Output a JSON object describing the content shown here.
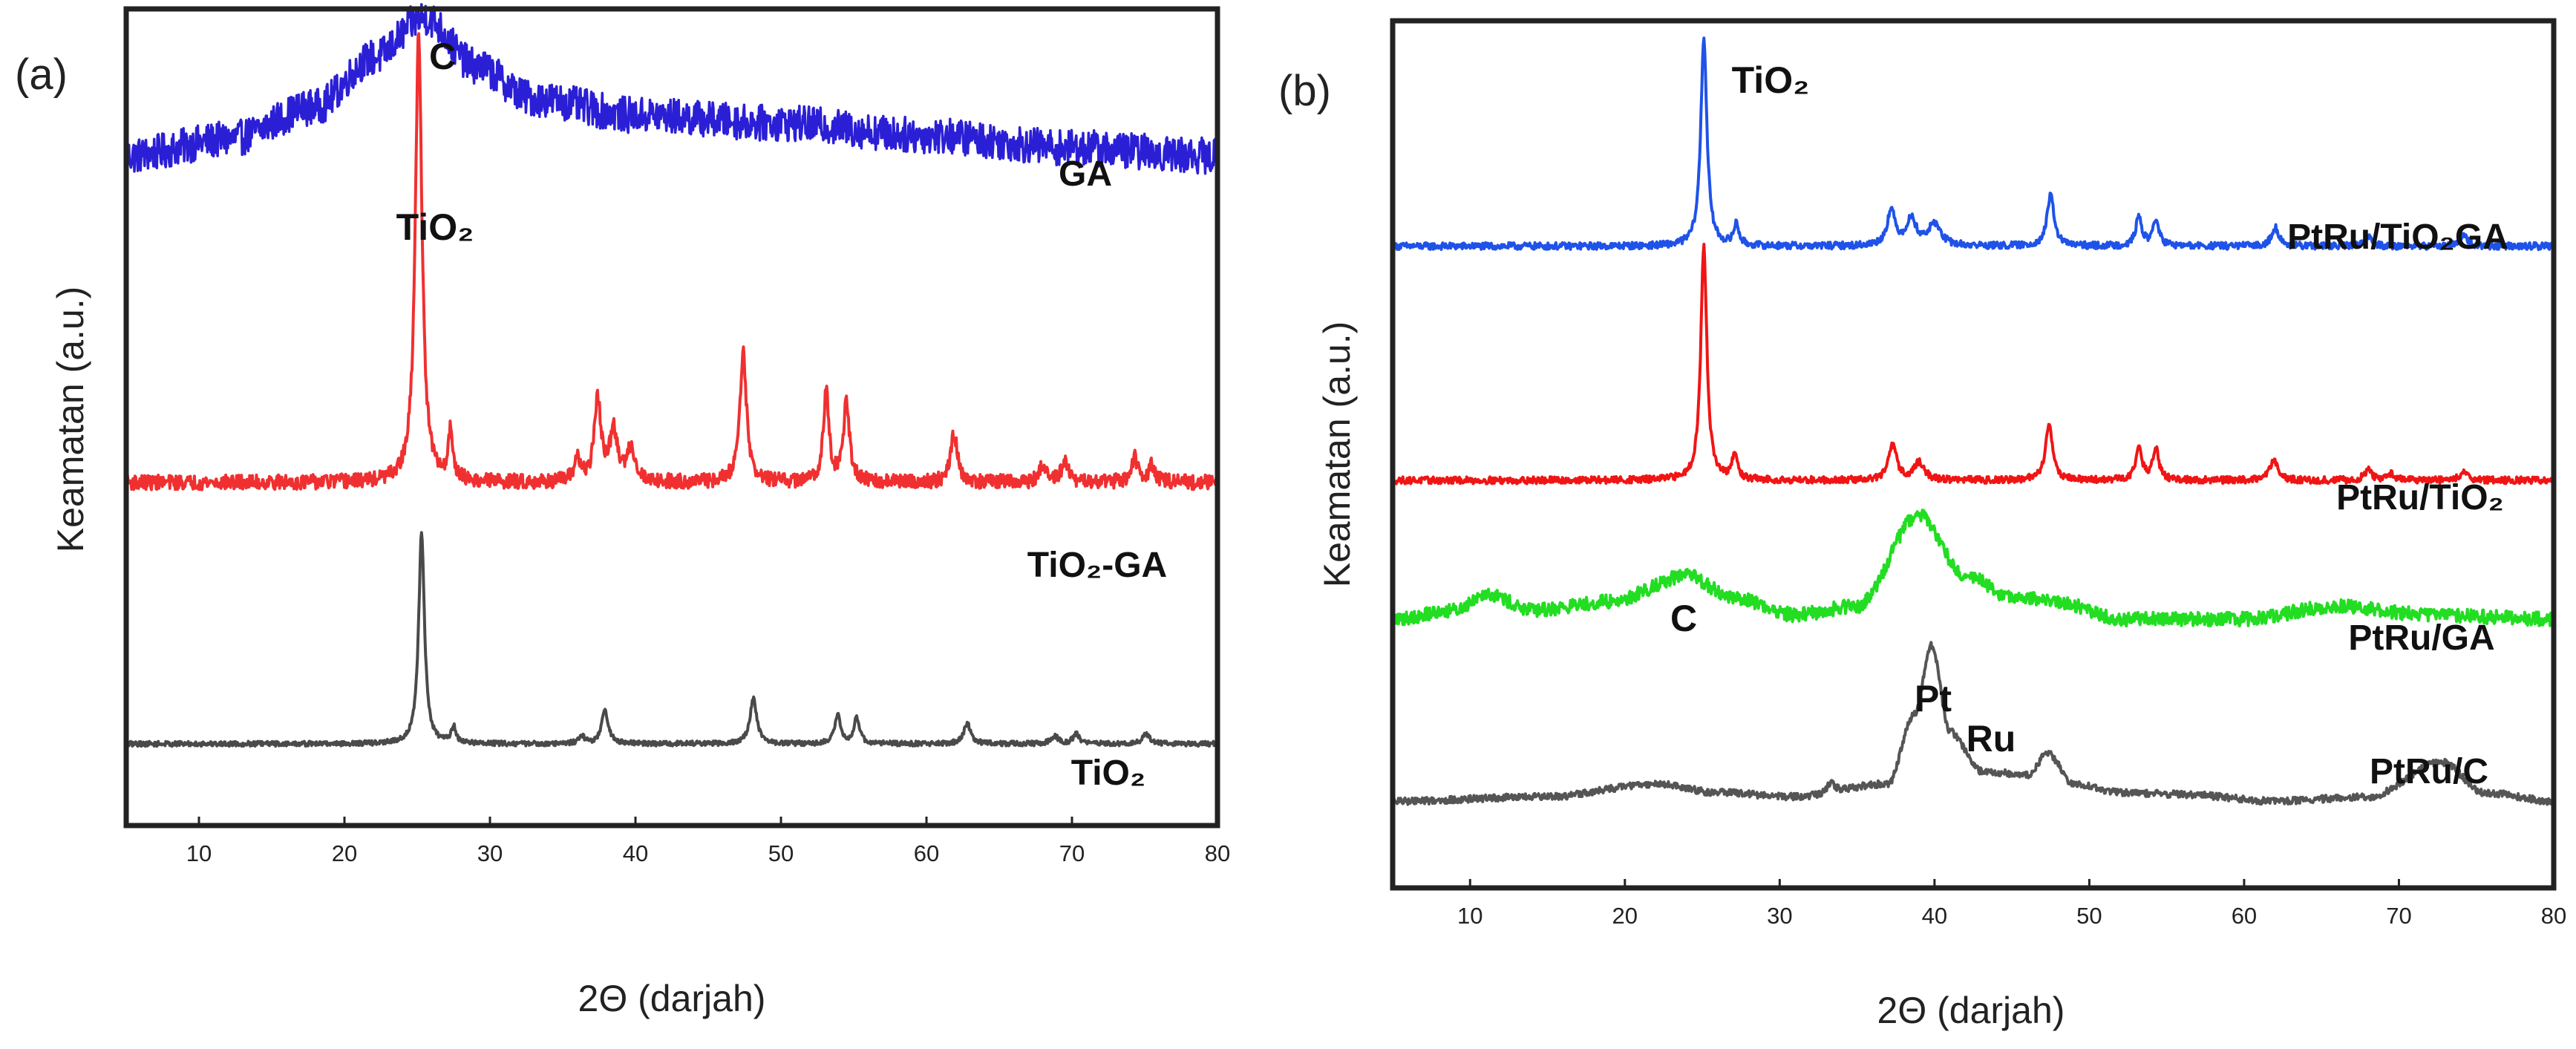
{
  "figure": {
    "panel_a_label": "(a)",
    "panel_b_label": "(b)"
  },
  "chart_data": [
    {
      "type": "line",
      "panel": "(a)",
      "title": "",
      "xlabel": "2Θ (darjah)",
      "ylabel": "Keamatan (a.u.)",
      "xlim": [
        5,
        80
      ],
      "xticks": [
        10,
        20,
        30,
        40,
        50,
        60,
        70,
        80
      ],
      "grid": false,
      "series": [
        {
          "name": "GA",
          "color": "#2b1fd6",
          "offset": 0.82,
          "base": [
            [
              5,
              0.0
            ],
            [
              12,
              0.02
            ],
            [
              18,
              0.06
            ],
            [
              22,
              0.12
            ],
            [
              25.5,
              0.17
            ],
            [
              29,
              0.11
            ],
            [
              33,
              0.07
            ],
            [
              40,
              0.05
            ],
            [
              50,
              0.04
            ],
            [
              60,
              0.025
            ],
            [
              70,
              0.01
            ],
            [
              80,
              0.0
            ]
          ],
          "peaks": [],
          "noise": 0.022
        },
        {
          "name": "TiO2-GA",
          "color": "#f03030",
          "offset": 0.42,
          "base": [
            [
              5,
              0.0
            ],
            [
              80,
              0.0
            ]
          ],
          "peaks": [
            [
              25.1,
              0.55,
              0.35
            ],
            [
              27.3,
              0.06,
              0.25
            ],
            [
              36.0,
              0.03,
              0.3
            ],
            [
              37.4,
              0.1,
              0.35
            ],
            [
              38.5,
              0.06,
              0.4
            ],
            [
              39.7,
              0.04,
              0.45
            ],
            [
              47.4,
              0.16,
              0.35
            ],
            [
              53.1,
              0.11,
              0.3
            ],
            [
              54.5,
              0.1,
              0.3
            ],
            [
              61.9,
              0.06,
              0.35
            ],
            [
              68.0,
              0.02,
              0.35
            ],
            [
              69.5,
              0.025,
              0.35
            ],
            [
              74.3,
              0.03,
              0.35
            ],
            [
              75.5,
              0.02,
              0.35
            ]
          ],
          "noise": 0.009
        },
        {
          "name": "TiO2",
          "color": "#4a4a4a",
          "offset": 0.1,
          "base": [
            [
              5,
              0.0
            ],
            [
              80,
              0.0
            ]
          ],
          "peaks": [
            [
              25.3,
              0.26,
              0.3
            ],
            [
              27.5,
              0.02,
              0.25
            ],
            [
              36.3,
              0.01,
              0.3
            ],
            [
              37.9,
              0.04,
              0.35
            ],
            [
              48.1,
              0.056,
              0.35
            ],
            [
              53.9,
              0.035,
              0.3
            ],
            [
              55.2,
              0.032,
              0.3
            ],
            [
              62.8,
              0.025,
              0.35
            ],
            [
              68.8,
              0.01,
              0.35
            ],
            [
              70.3,
              0.012,
              0.35
            ],
            [
              75.1,
              0.012,
              0.35
            ]
          ],
          "noise": 0.003
        }
      ],
      "annotations": [
        {
          "text": "C",
          "x": 26.1
        },
        {
          "text": "TiO₂",
          "x": 25.1
        },
        {
          "text": "GA",
          "series": "GA"
        },
        {
          "text": "TiO₂-GA",
          "series": "TiO2-GA"
        },
        {
          "text": "TiO₂",
          "series": "TiO2"
        }
      ]
    },
    {
      "type": "line",
      "panel": "(b)",
      "title": "",
      "xlabel": "2Θ (darjah)",
      "ylabel": "Keamatan (a.u.)",
      "xlim": [
        5,
        80
      ],
      "xticks": [
        10,
        20,
        30,
        40,
        50,
        60,
        70,
        80
      ],
      "grid": false,
      "series": [
        {
          "name": "PtRu/TiO2GA",
          "color": "#1f52e8",
          "offset": 0.74,
          "base": [
            [
              5,
              0.0
            ],
            [
              80,
              0.0
            ]
          ],
          "peaks": [
            [
              25.1,
              0.24,
              0.3
            ],
            [
              27.2,
              0.025,
              0.25
            ],
            [
              37.2,
              0.04,
              0.4
            ],
            [
              38.5,
              0.03,
              0.5
            ],
            [
              40.0,
              0.025,
              0.6
            ],
            [
              47.5,
              0.058,
              0.35
            ],
            [
              53.2,
              0.033,
              0.3
            ],
            [
              54.3,
              0.03,
              0.3
            ],
            [
              62.0,
              0.022,
              0.35
            ],
            [
              68.0,
              0.012,
              0.35
            ],
            [
              74.2,
              0.013,
              0.35
            ]
          ],
          "noise": 0.004
        },
        {
          "name": "PtRu/TiO2",
          "color": "#f01515",
          "offset": 0.47,
          "base": [
            [
              5,
              0.0
            ],
            [
              80,
              0.0
            ]
          ],
          "peaks": [
            [
              25.1,
              0.27,
              0.3
            ],
            [
              27.1,
              0.03,
              0.25
            ],
            [
              37.3,
              0.04,
              0.4
            ],
            [
              39.0,
              0.02,
              0.5
            ],
            [
              47.4,
              0.065,
              0.35
            ],
            [
              53.2,
              0.04,
              0.3
            ],
            [
              54.3,
              0.035,
              0.3
            ],
            [
              61.9,
              0.025,
              0.35
            ],
            [
              68.0,
              0.012,
              0.35
            ],
            [
              69.5,
              0.008,
              0.35
            ],
            [
              74.2,
              0.012,
              0.35
            ]
          ],
          "noise": 0.004
        },
        {
          "name": "PtRu/GA",
          "color": "#22dd22",
          "offset": 0.31,
          "base": [
            [
              5,
              0.0
            ],
            [
              9,
              0.01
            ],
            [
              11,
              0.03
            ],
            [
              14,
              0.01
            ],
            [
              19,
              0.02
            ],
            [
              24,
              0.05
            ],
            [
              27,
              0.025
            ],
            [
              31,
              0.005
            ],
            [
              35,
              0.015
            ],
            [
              39,
              0.12
            ],
            [
              42,
              0.05
            ],
            [
              45,
              0.025
            ],
            [
              48,
              0.02
            ],
            [
              52,
              0.0
            ],
            [
              60,
              0.0
            ],
            [
              66,
              0.015
            ],
            [
              72,
              0.005
            ],
            [
              80,
              0.0
            ]
          ],
          "peaks": [],
          "noise": 0.008
        },
        {
          "name": "PtRu/C",
          "color": "#555555",
          "offset": 0.1,
          "base": [
            [
              5,
              0.0
            ],
            [
              15,
              0.005
            ],
            [
              22,
              0.02
            ],
            [
              26,
              0.01
            ],
            [
              31,
              0.005
            ],
            [
              37,
              0.02
            ],
            [
              38.7,
              0.1
            ],
            [
              39.8,
              0.18
            ],
            [
              41.0,
              0.08
            ],
            [
              43,
              0.035
            ],
            [
              46,
              0.03
            ],
            [
              47.3,
              0.055
            ],
            [
              49,
              0.02
            ],
            [
              52,
              0.01
            ],
            [
              56,
              0.008
            ],
            [
              62,
              0.0
            ],
            [
              68,
              0.005
            ],
            [
              72.8,
              0.045
            ],
            [
              75.5,
              0.01
            ],
            [
              80,
              0.0
            ]
          ],
          "peaks": [
            [
              33.3,
              0.012,
              0.35
            ]
          ],
          "noise": 0.004
        }
      ],
      "annotations": [
        {
          "text": "TiO₂",
          "x": 25.1
        },
        {
          "text": "C",
          "x": 24.2
        },
        {
          "text": "Pt",
          "x": 39.5
        },
        {
          "text": "Ru",
          "x": 42.5
        },
        {
          "text": "PtRu/TiO₂GA",
          "series": "PtRu/TiO2GA"
        },
        {
          "text": "PtRu/TiO₂",
          "series": "PtRu/TiO2"
        },
        {
          "text": "PtRu/GA",
          "series": "PtRu/GA"
        },
        {
          "text": "PtRu/C",
          "series": "PtRu/C"
        }
      ]
    }
  ]
}
